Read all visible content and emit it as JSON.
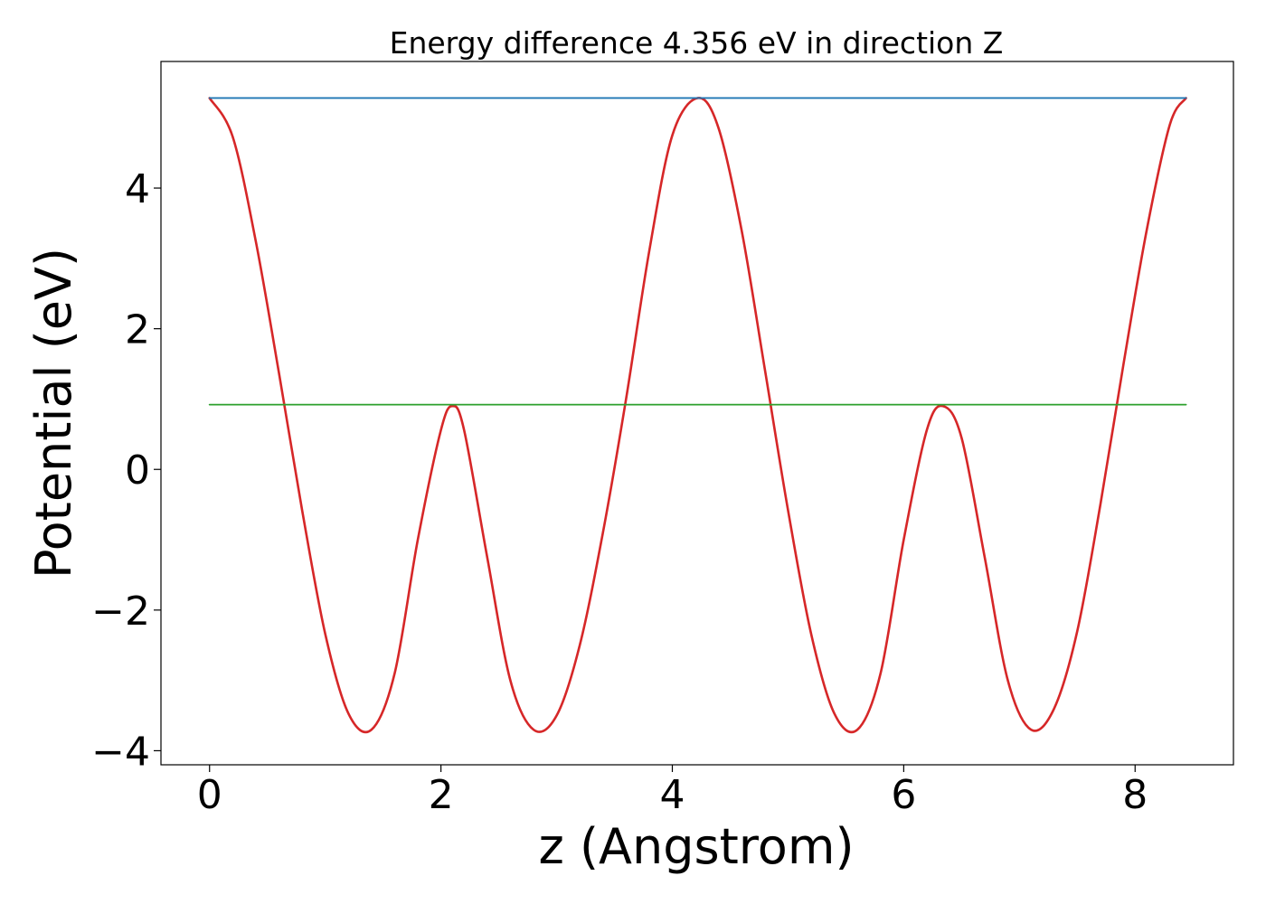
{
  "chart_data": {
    "type": "line",
    "title": "Energy difference 4.356 eV in direction Z",
    "xlabel": "z (Angstrom)",
    "ylabel": "Potential (eV)",
    "xlim": [
      -0.42,
      8.85
    ],
    "ylim": [
      -4.2,
      5.8
    ],
    "xticks": [
      {
        "value": 0,
        "label": "0"
      },
      {
        "value": 2,
        "label": "2"
      },
      {
        "value": 4,
        "label": "4"
      },
      {
        "value": 6,
        "label": "6"
      },
      {
        "value": 8,
        "label": "8"
      }
    ],
    "yticks": [
      {
        "value": -4,
        "label": "−4"
      },
      {
        "value": -2,
        "label": "−2"
      },
      {
        "value": 0,
        "label": "0"
      },
      {
        "value": 2,
        "label": "2"
      },
      {
        "value": 4,
        "label": "4"
      }
    ],
    "grid": false,
    "series": [
      {
        "color": "#d62728",
        "x": [
          0.0,
          0.2,
          0.4,
          0.6,
          0.8,
          1.0,
          1.2,
          1.4,
          1.6,
          1.8,
          2.0,
          2.1,
          2.2,
          2.4,
          2.6,
          2.8,
          3.0,
          3.2,
          3.4,
          3.6,
          3.8,
          4.0,
          4.22,
          4.4,
          4.6,
          4.8,
          5.0,
          5.2,
          5.4,
          5.6,
          5.8,
          6.0,
          6.2,
          6.34,
          6.5,
          6.7,
          6.9,
          7.1,
          7.3,
          7.5,
          7.7,
          7.9,
          8.1,
          8.3,
          8.44
        ],
        "y": [
          5.28,
          4.73,
          3.24,
          1.37,
          -0.58,
          -2.34,
          -3.47,
          -3.7,
          -2.9,
          -1.0,
          0.56,
          0.9,
          0.56,
          -1.25,
          -3.0,
          -3.7,
          -3.5,
          -2.5,
          -0.9,
          1.0,
          3.1,
          4.75,
          5.28,
          4.85,
          3.39,
          1.42,
          -0.58,
          -2.34,
          -3.47,
          -3.7,
          -2.9,
          -1.0,
          0.56,
          0.9,
          0.45,
          -1.25,
          -3.0,
          -3.7,
          -3.4,
          -2.3,
          -0.5,
          1.5,
          3.4,
          4.9,
          5.28
        ]
      },
      {
        "color": "#1f77b4",
        "x": [
          0.0,
          8.44
        ],
        "y": [
          5.28,
          5.28
        ]
      },
      {
        "color": "#2ca02c",
        "x": [
          0.0,
          8.44
        ],
        "y": [
          0.92,
          0.92
        ]
      }
    ]
  }
}
